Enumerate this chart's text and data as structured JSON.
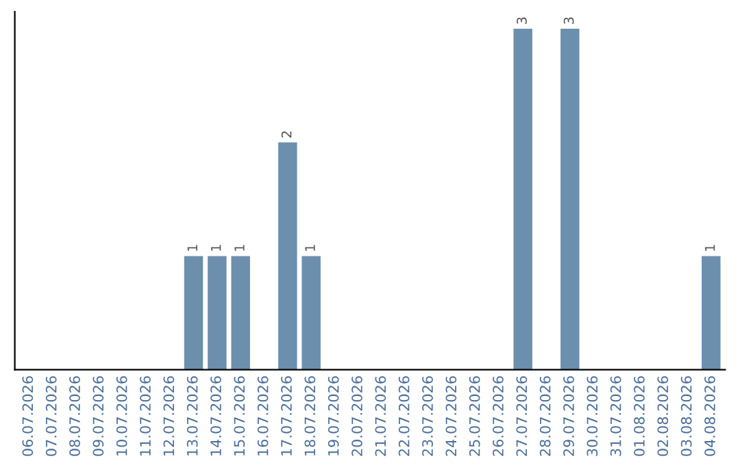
{
  "chart_data": {
    "type": "bar",
    "categories": [
      "06.07.2026",
      "07.07.2026",
      "08.07.2026",
      "09.07.2026",
      "10.07.2026",
      "11.07.2026",
      "12.07.2026",
      "13.07.2026",
      "14.07.2026",
      "15.07.2026",
      "16.07.2026",
      "17.07.2026",
      "18.07.2026",
      "19.07.2026",
      "20.07.2026",
      "21.07.2026",
      "22.07.2026",
      "23.07.2026",
      "24.07.2026",
      "25.07.2026",
      "26.07.2026",
      "27.07.2026",
      "28.07.2026",
      "29.07.2026",
      "30.07.2026",
      "31.07.2026",
      "01.08.2026",
      "02.08.2026",
      "03.08.2026",
      "04.08.2026"
    ],
    "values": [
      0,
      0,
      0,
      0,
      0,
      0,
      0,
      1,
      1,
      1,
      0,
      2,
      1,
      0,
      0,
      0,
      0,
      0,
      0,
      0,
      0,
      3,
      0,
      3,
      0,
      0,
      0,
      0,
      0,
      1
    ],
    "value_labels": [
      null,
      null,
      null,
      null,
      null,
      null,
      null,
      "1",
      "1",
      "1",
      null,
      "2",
      "1",
      null,
      null,
      null,
      null,
      null,
      null,
      null,
      null,
      "3",
      null,
      "3",
      null,
      null,
      null,
      null,
      null,
      "1"
    ],
    "color": "#6d8fae",
    "tick_labels": "x",
    "grid": false,
    "legend": false
  }
}
